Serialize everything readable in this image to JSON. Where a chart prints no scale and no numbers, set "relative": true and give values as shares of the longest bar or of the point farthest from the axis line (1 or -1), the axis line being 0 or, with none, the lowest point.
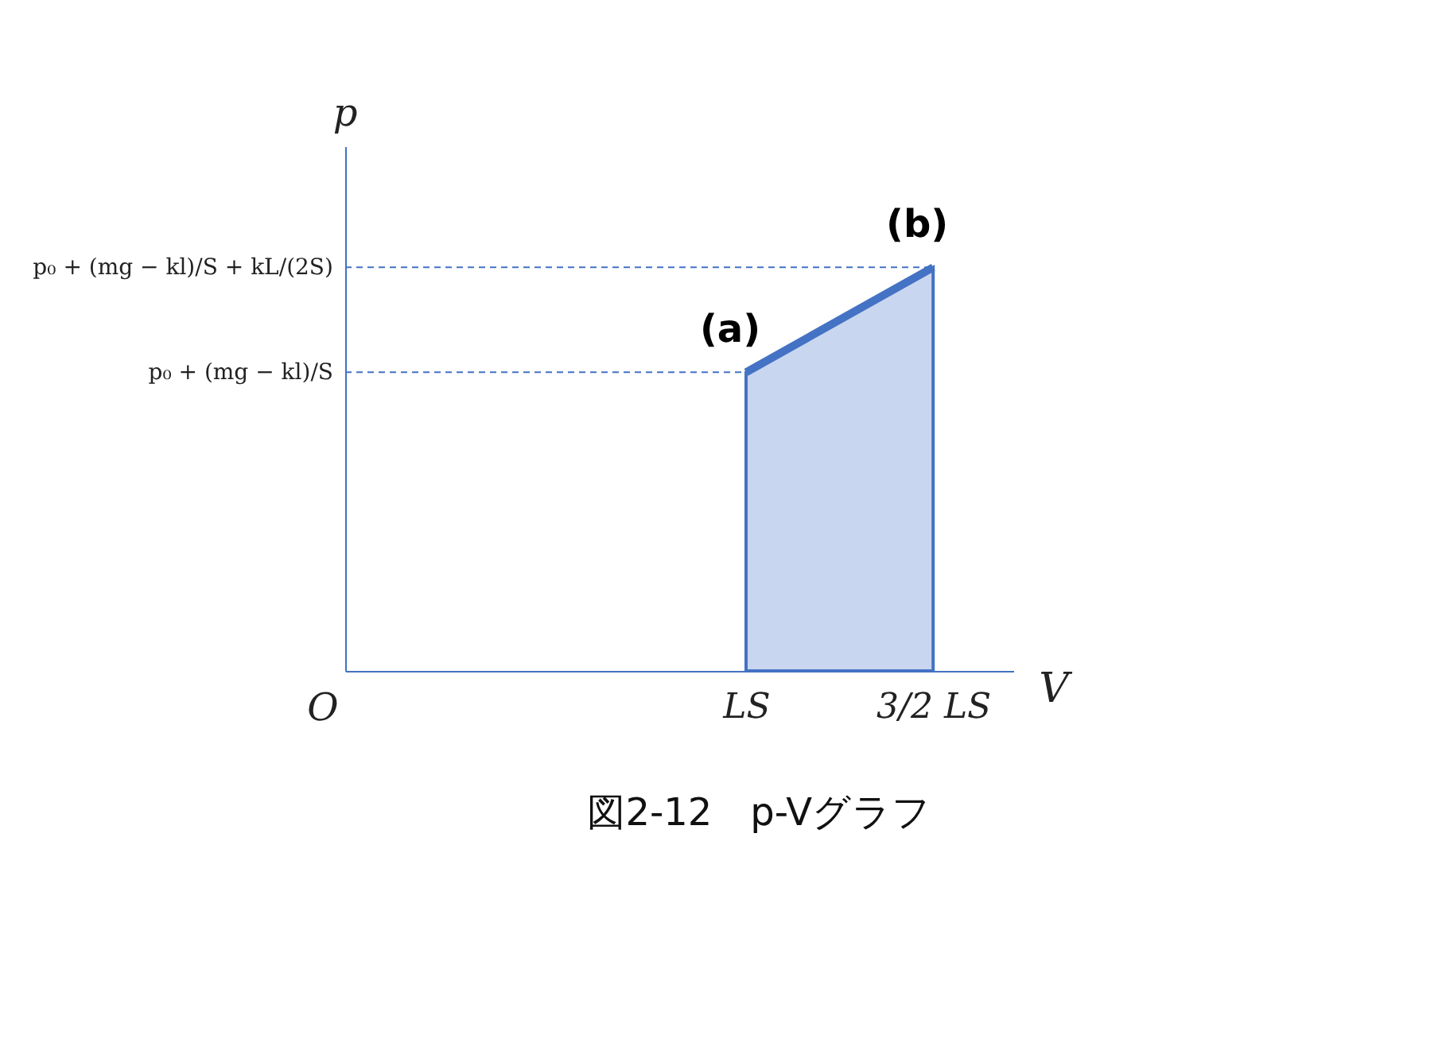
{
  "chart_data": {
    "type": "area",
    "relative": true,
    "xlabel": "V",
    "categories": [
      "LS",
      "3/2 LS"
    ],
    "series": [
      {
        "color": "#4472c4",
        "values": [
          0.74,
          1
        ]
      }
    ],
    "ref_lines": [
      {
        "axis": "y",
        "value": 0.74,
        "label": "p₀ + (mg − kl)/S",
        "line_style": "dashed",
        "color": "#4472c4"
      },
      {
        "axis": "y",
        "value": 1,
        "label": "p₀ + (mg − kl)/S + kL/(2S)",
        "line_style": "dashed",
        "color": "#4472c4"
      }
    ],
    "annotations": [
      {
        "text": "(a)",
        "x": "LS",
        "y": 0.74
      },
      {
        "text": "(b)",
        "x": "3/2 LS",
        "y": 1
      },
      "p",
      "O",
      "図2-12　p-Vグラフ"
    ],
    "grid": false,
    "legend": false
  }
}
